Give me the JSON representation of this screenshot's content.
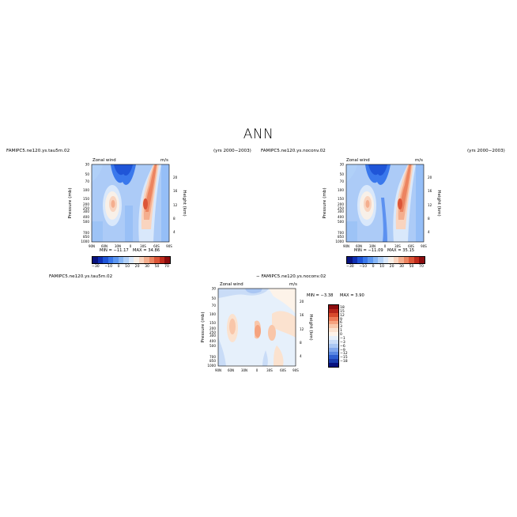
{
  "page": {
    "title": "ANN"
  },
  "colorbar_top": {
    "colors": [
      "#08127e",
      "#0f2fb3",
      "#1f55d8",
      "#3a78ec",
      "#5d98f2",
      "#86b6f6",
      "#b0d0f8",
      "#d9e8fb",
      "#f8f0e8",
      "#f9d4bf",
      "#f4ae8e",
      "#ec8460",
      "#dc5638",
      "#c02b1c",
      "#8c0c0e"
    ],
    "labels": [
      "−30",
      "−10",
      "0",
      "10",
      "20",
      "30",
      "50",
      "70"
    ]
  },
  "colorbar_diff": {
    "colors": [
      "#8c0c0e",
      "#b5241a",
      "#d84a2c",
      "#ec7a56",
      "#f5a37f",
      "#f9c6a9",
      "#fbe2cf",
      "#fdf3e9",
      "#e6f0fb",
      "#c9dcf7",
      "#a9c6f3",
      "#82a8ec",
      "#5a88e2",
      "#2f5fd0",
      "#1b3dae",
      "#08127e"
    ],
    "labels": [
      "18",
      "15",
      "12",
      "9",
      "6",
      "3",
      "1",
      "0",
      "−1",
      "−3",
      "−6",
      "−9",
      "−12",
      "−15",
      "−18"
    ]
  },
  "chart_data": [
    {
      "type": "heatmap",
      "panel": "top-left",
      "case": "FAMIPC5.ne120.ys.tau5m.02",
      "years": "(yrs 2000−2003)",
      "variable": "Zonal wind",
      "units": "m/s",
      "ylabel": "Pressure (mb)",
      "ylabel_right": "Height (km)",
      "x_ticks": [
        "90N",
        "60N",
        "30N",
        "0",
        "30S",
        "60S",
        "90S"
      ],
      "y_ticks": [
        "30",
        "50",
        "70",
        "100",
        "150",
        "200",
        "250",
        "300",
        "400",
        "500",
        "700",
        "850",
        "1000"
      ],
      "y_ticks_right": [
        "20",
        "16",
        "12",
        "8",
        "4"
      ],
      "min_label": "MIN = −11.17",
      "max_label": "MAX = 34.86",
      "min": -11.17,
      "max": 34.86
    },
    {
      "type": "heatmap",
      "panel": "top-right",
      "case": "FAMIPC5.ne120.ys.noconv.02",
      "years": "(yrs 2000−2003)",
      "variable": "Zonal wind",
      "units": "m/s",
      "ylabel": "Pressure (mb)",
      "ylabel_right": "Height (km)",
      "x_ticks": [
        "90N",
        "60N",
        "30N",
        "0",
        "30S",
        "60S",
        "90S"
      ],
      "y_ticks": [
        "30",
        "50",
        "70",
        "100",
        "150",
        "200",
        "250",
        "300",
        "400",
        "500",
        "700",
        "850",
        "1000"
      ],
      "y_ticks_right": [
        "20",
        "16",
        "12",
        "8",
        "4"
      ],
      "min_label": "MIN = −11.09",
      "max_label": "MAX = 35.15",
      "min": -11.09,
      "max": 35.15
    },
    {
      "type": "heatmap",
      "panel": "difference",
      "case_left": "FAMIPC5.ne120.ys.tau5m.02",
      "case_right": "− FAMIPC5.ne120.ys.noconv.02",
      "variable": "Zonal wind",
      "units": "m/s",
      "ylabel": "Pressure (mb)",
      "ylabel_right": "Height (km)",
      "x_ticks": [
        "90N",
        "60N",
        "30N",
        "0",
        "30S",
        "60S",
        "90S"
      ],
      "y_ticks": [
        "30",
        "50",
        "70",
        "100",
        "150",
        "200",
        "250",
        "300",
        "400",
        "500",
        "700",
        "850",
        "1000"
      ],
      "y_ticks_right": [
        "20",
        "16",
        "12",
        "8",
        "4"
      ],
      "min_label": "MIN = −3.38",
      "max_label": "MAX = 3.90",
      "min": -3.38,
      "max": 3.9
    }
  ]
}
